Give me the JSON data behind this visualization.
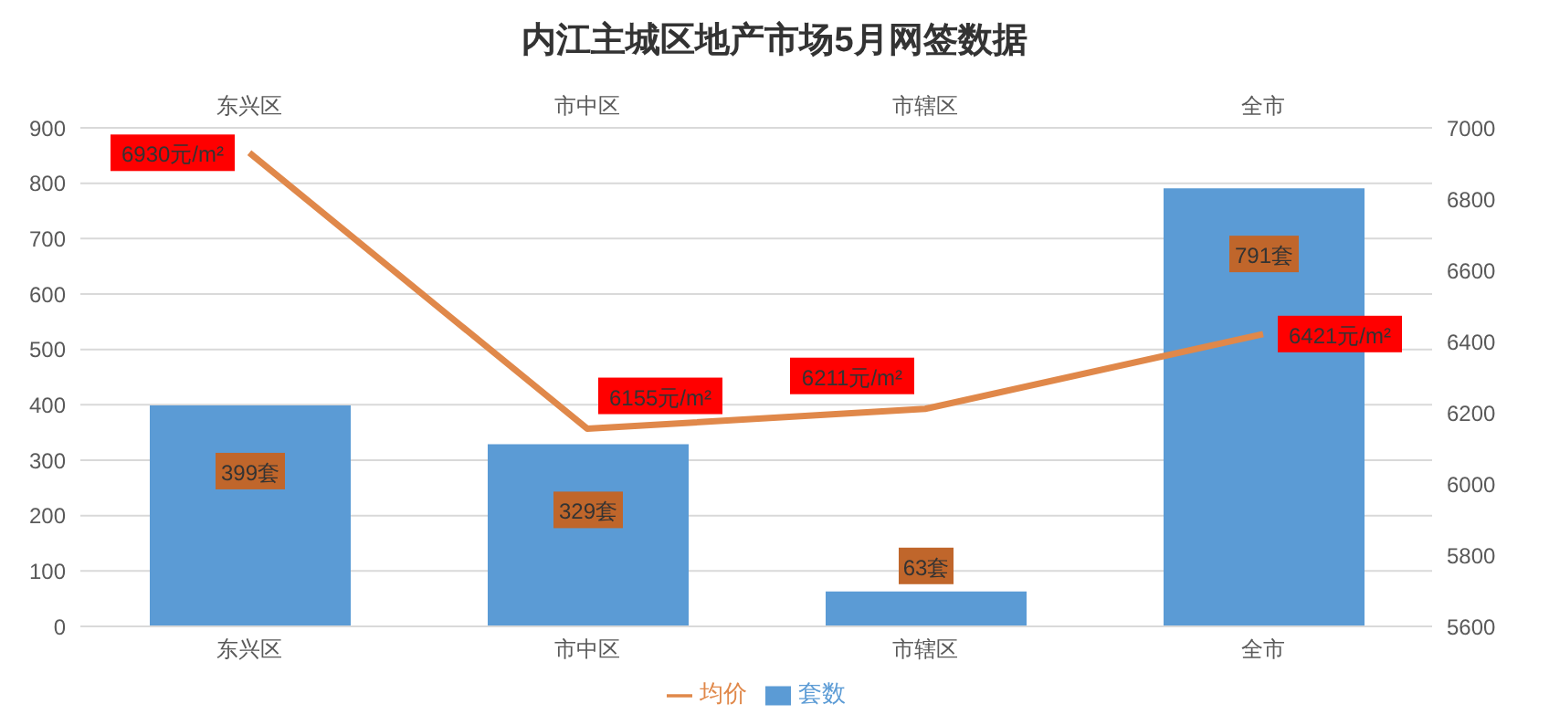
{
  "chart_data": {
    "type": "bar",
    "title": "内江主城区地产市场5月网签数据",
    "categories": [
      "东兴区",
      "市中区",
      "市辖区",
      "全市"
    ],
    "series": [
      {
        "name": "套数",
        "color": "#5b9bd5",
        "values": [
          399,
          329,
          63,
          791
        ],
        "value_labels": [
          "399套",
          "329套",
          "63套",
          "791套"
        ]
      },
      {
        "name": "均价",
        "type": "line",
        "axis": "y2",
        "color": "#e0884a",
        "values": [
          6930,
          6155,
          6211,
          6421
        ],
        "value_labels": [
          "6930元/m²",
          "6155元/m²",
          "6211元/m²",
          "6421元/m²"
        ]
      }
    ],
    "ylim": [
      0,
      900
    ],
    "yticks": [
      0,
      100,
      200,
      300,
      400,
      500,
      600,
      700,
      800,
      900
    ],
    "y2lim": [
      5600,
      7000
    ],
    "y2ticks": [
      5600,
      5800,
      6000,
      6200,
      6400,
      6600,
      6800,
      7000
    ],
    "grid": "y",
    "legend": "bottom",
    "marker": "none",
    "line_style": "solid"
  }
}
